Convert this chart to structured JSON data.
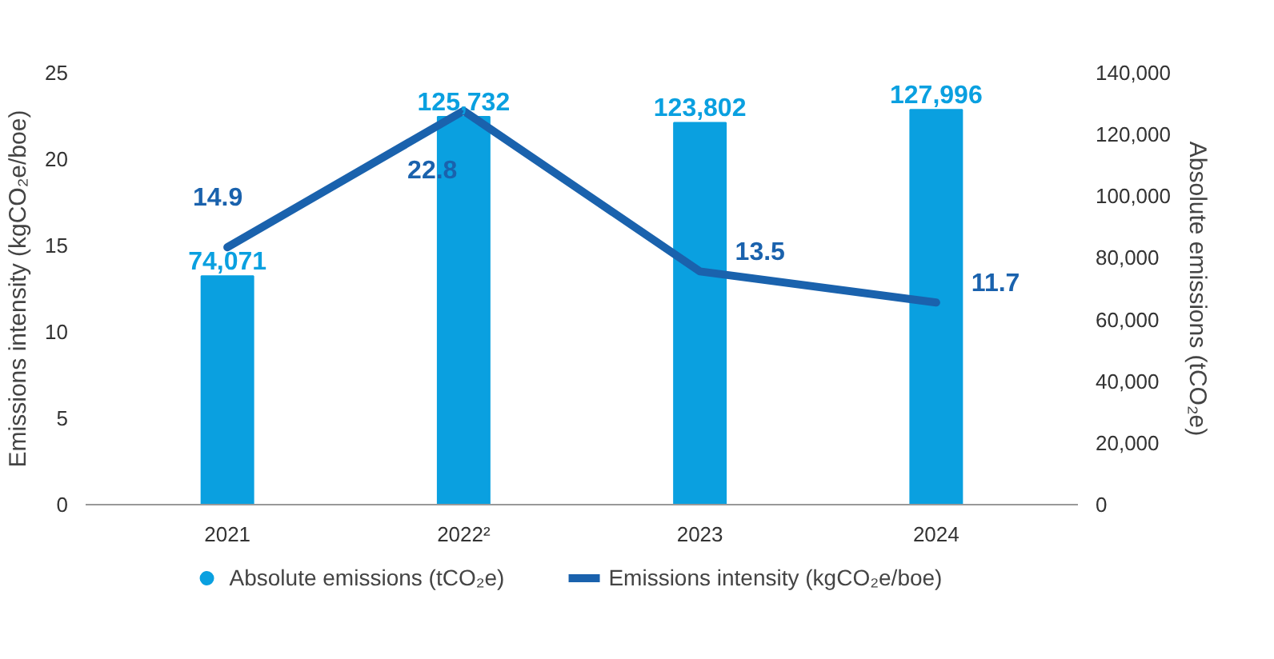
{
  "chart_data": {
    "type": "bar",
    "categories": [
      "2021",
      "2022²",
      "2023",
      "2024"
    ],
    "ylabel": "Emissions intensity (kgCO₂e/boe)",
    "y2label": "Absolute emissions (tCO₂e)",
    "ylim": [
      0,
      25
    ],
    "yticks": [
      0,
      5,
      10,
      15,
      20,
      25
    ],
    "y2lim": [
      0,
      140000
    ],
    "y2ticks": [
      {
        "value": 0,
        "label": "0"
      },
      {
        "value": 20000,
        "label": "20,000"
      },
      {
        "value": 40000,
        "label": "40,000"
      },
      {
        "value": 60000,
        "label": "60,000"
      },
      {
        "value": 80000,
        "label": "80,000"
      },
      {
        "value": 100000,
        "label": "100,000"
      },
      {
        "value": 120000,
        "label": "120,000"
      },
      {
        "value": 140000,
        "label": "140,000"
      }
    ],
    "series": [
      {
        "name": "Absolute emissions (tCO₂e)",
        "axis": "y2",
        "color": "#0aa0e0",
        "values": [
          74071,
          125732,
          123802,
          127996
        ],
        "value_labels": [
          "74,071",
          "125,732",
          "123,802",
          "127,996"
        ]
      },
      {
        "name": "Emissions intensity (kgCO₂e/boe)",
        "type": "line",
        "axis": "y",
        "color": "#1a62ad",
        "values": [
          14.9,
          22.8,
          13.5,
          11.7
        ],
        "value_labels": [
          "14.9",
          "22.8",
          "13.5",
          "11.7"
        ]
      }
    ],
    "grid": false,
    "legend": "bottom"
  }
}
